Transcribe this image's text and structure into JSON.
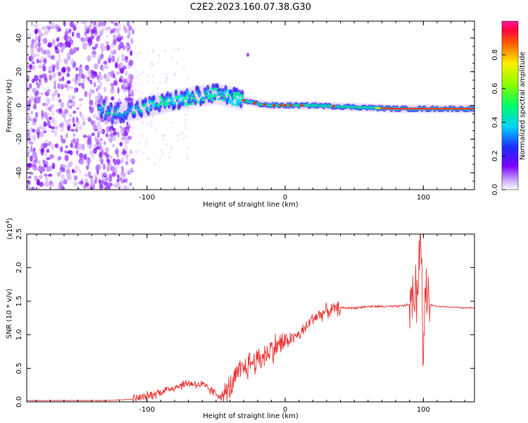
{
  "title": "C2E2.2023.160.07.38.G30",
  "chart_data": [
    {
      "type": "heatmap",
      "xlabel": "Height of straight line (km)",
      "ylabel": "Frequency (Hz)",
      "xlim": [
        -187,
        137
      ],
      "ylim": [
        -50,
        50
      ],
      "xticks": [
        -100,
        0,
        100
      ],
      "yticks": [
        -40,
        -20,
        0,
        20,
        40
      ],
      "colorbar": {
        "label": "Normalized spectral amplitude",
        "range": [
          0.0,
          1.0
        ],
        "ticks": [
          "0.0",
          "0.2",
          "0.4",
          "0.6",
          "0.8"
        ],
        "colormap": "rainbow"
      },
      "ridge": [
        {
          "x": -130,
          "f": -5
        },
        {
          "x": -110,
          "f": -3
        },
        {
          "x": -95,
          "f": 0
        },
        {
          "x": -80,
          "f": 3
        },
        {
          "x": -65,
          "f": 5
        },
        {
          "x": -50,
          "f": 7
        },
        {
          "x": -40,
          "f": 5
        },
        {
          "x": -30,
          "f": 3
        },
        {
          "x": -20,
          "f": 1
        },
        {
          "x": -10,
          "f": 0
        },
        {
          "x": 0,
          "f": 0
        },
        {
          "x": 20,
          "f": 0
        },
        {
          "x": 50,
          "f": -1
        },
        {
          "x": 80,
          "f": -2
        },
        {
          "x": 100,
          "f": -2
        },
        {
          "x": 137,
          "f": -2
        }
      ]
    },
    {
      "type": "line",
      "xlabel": "Height of straight line (km)",
      "ylabel": "SNR (10 * v/v)",
      "multiplier": "(x10",
      "multiplier_exp": "4",
      "multiplier_close": ")",
      "xlim": [
        -187,
        137
      ],
      "ylim": [
        0,
        2.5
      ],
      "xticks": [
        -100,
        0,
        100
      ],
      "yticks": [
        "0.0",
        "0.5",
        "1.0",
        "1.5",
        "2.0",
        "2.5"
      ],
      "color": "#e83030",
      "series": [
        {
          "x": [
            -187,
            -160,
            -130,
            -110,
            -100,
            -90,
            -80,
            -70,
            -60,
            -50,
            -45,
            -40,
            -35,
            -30,
            -25,
            -20,
            -15,
            -10,
            -5,
            0,
            5,
            10,
            15,
            20,
            25,
            30,
            40,
            50,
            60,
            70,
            80,
            85,
            90,
            95,
            98,
            100,
            102,
            105,
            110,
            120,
            130,
            137
          ],
          "y": [
            0.02,
            0.02,
            0.02,
            0.04,
            0.08,
            0.15,
            0.22,
            0.28,
            0.25,
            0.12,
            0.08,
            0.2,
            0.38,
            0.5,
            0.58,
            0.62,
            0.7,
            0.78,
            0.85,
            0.9,
            0.95,
            1.0,
            1.1,
            1.25,
            1.3,
            1.35,
            1.4,
            1.4,
            1.42,
            1.42,
            1.42,
            1.43,
            1.45,
            1.6,
            2.3,
            0.6,
            1.8,
            1.45,
            1.42,
            1.41,
            1.4,
            1.4
          ]
        }
      ]
    }
  ]
}
